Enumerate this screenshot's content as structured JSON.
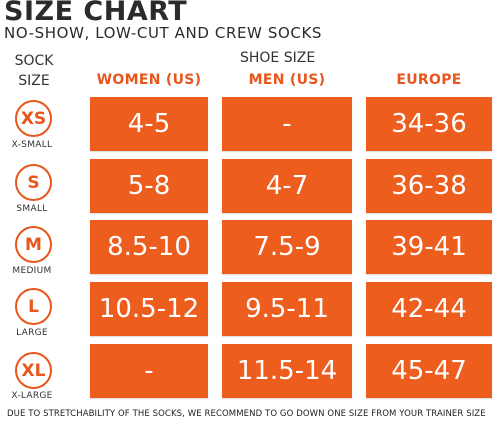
{
  "header": {
    "title": "SIZE CHART",
    "subtitle": "NO-SHOW, LOW-CUT AND CREW SOCKS"
  },
  "labels": {
    "sock_line1": "SOCK",
    "sock_line2": "SIZE",
    "shoe_size": "SHOE SIZE"
  },
  "columns": {
    "women": "WOMEN (US)",
    "men": "MEN (US)",
    "europe": "EUROPE"
  },
  "rows": [
    {
      "code": "XS",
      "name": "X-SMALL",
      "women": "4-5",
      "men": "-",
      "europe": "34-36"
    },
    {
      "code": "S",
      "name": "SMALL",
      "women": "5-8",
      "men": "4-7",
      "europe": "36-38"
    },
    {
      "code": "M",
      "name": "MEDIUM",
      "women": "8.5-10",
      "men": "7.5-9",
      "europe": "39-41"
    },
    {
      "code": "L",
      "name": "LARGE",
      "women": "10.5-12",
      "men": "9.5-11",
      "europe": "42-44"
    },
    {
      "code": "XL",
      "name": "X-LARGE",
      "women": "-",
      "men": "11.5-14",
      "europe": "45-47"
    }
  ],
  "footer": "DUE TO STRETCHABILITY OF THE SOCKS, WE RECOMMEND TO GO DOWN ONE SIZE FROM YOUR TRAINER SIZE",
  "colors": {
    "accent": "#ec5d1e",
    "text": "#2b2b2b"
  }
}
